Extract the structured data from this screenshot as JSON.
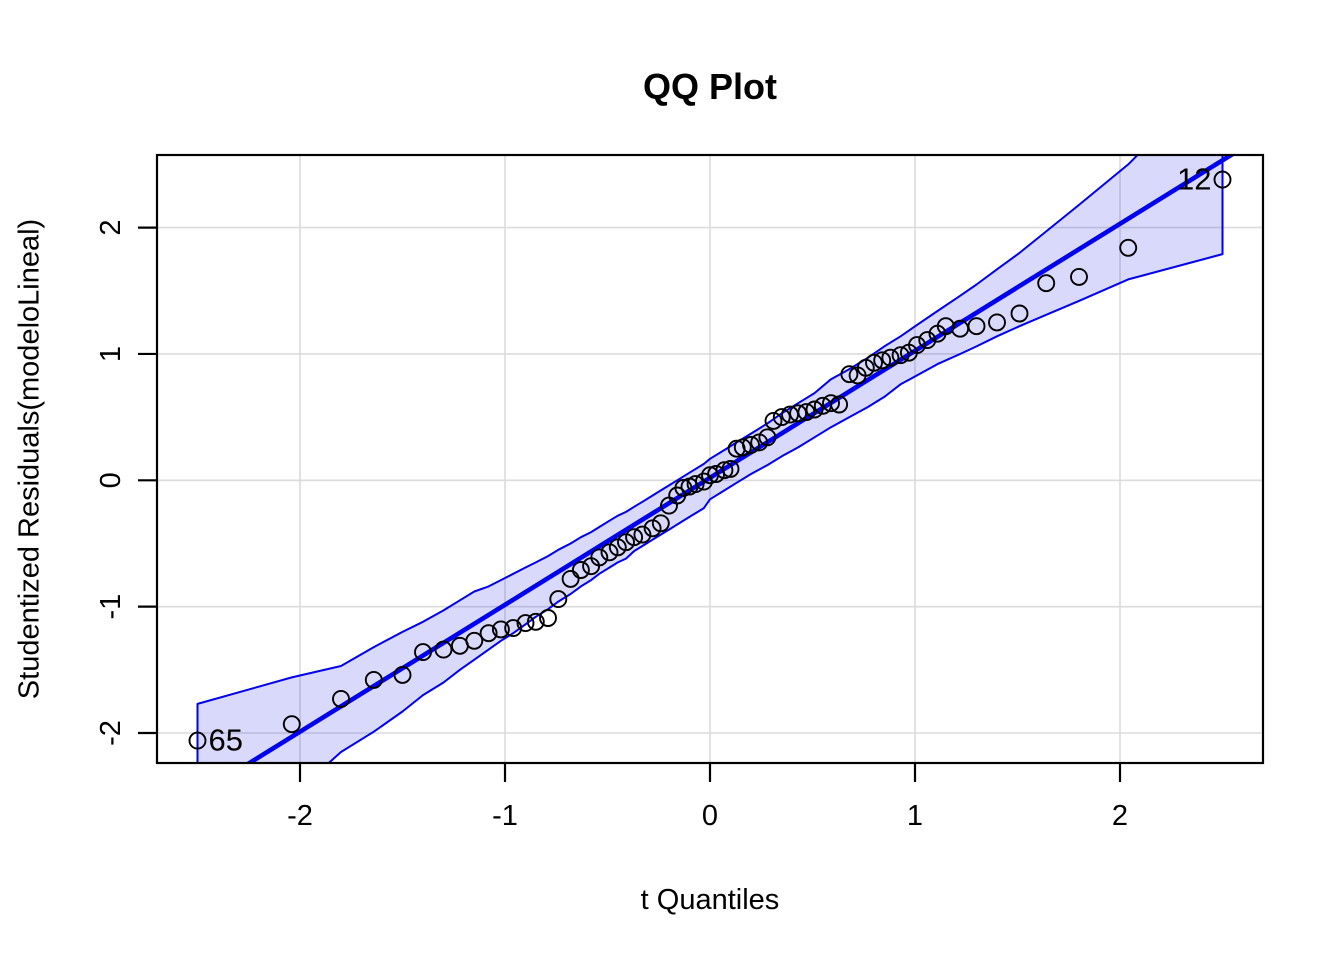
{
  "chart_data": {
    "type": "scatter",
    "title": "QQ Plot",
    "xlabel": "t Quantiles",
    "ylabel": "Studentized Residuals(modeloLineal)",
    "xlim": [
      -2.7,
      2.7
    ],
    "ylim": [
      -2.24,
      2.57
    ],
    "x_ticks": [
      "-2",
      "-1",
      "0",
      "1",
      "2"
    ],
    "x_tick_values": [
      -2,
      -1,
      0,
      1,
      2
    ],
    "y_ticks": [
      "-2",
      "-1",
      "0",
      "1",
      "2"
    ],
    "y_tick_values": [
      -2,
      -1,
      0,
      1,
      2
    ],
    "grid": true,
    "legend": null,
    "reference_line": {
      "intercept": 0.02,
      "slope": 1.005
    },
    "envelope": [
      [
        -2.5,
        -3.23,
        -1.77
      ],
      [
        -2.04,
        -2.5,
        -1.56
      ],
      [
        -1.8,
        -2.15,
        -1.47
      ],
      [
        -1.64,
        -1.99,
        -1.32
      ],
      [
        -1.5,
        -1.83,
        -1.2
      ],
      [
        -1.4,
        -1.7,
        -1.12
      ],
      [
        -1.3,
        -1.6,
        -1.03
      ],
      [
        -1.22,
        -1.5,
        -0.95
      ],
      [
        -1.15,
        -1.42,
        -0.88
      ],
      [
        -1.08,
        -1.34,
        -0.84
      ],
      [
        -1.02,
        -1.27,
        -0.79
      ],
      [
        -0.96,
        -1.21,
        -0.74
      ],
      [
        -0.9,
        -1.14,
        -0.69
      ],
      [
        -0.85,
        -1.08,
        -0.65
      ],
      [
        -0.79,
        -1.02,
        -0.6
      ],
      [
        -0.74,
        -0.96,
        -0.55
      ],
      [
        -0.68,
        -0.9,
        -0.5
      ],
      [
        -0.63,
        -0.84,
        -0.45
      ],
      [
        -0.58,
        -0.79,
        -0.41
      ],
      [
        -0.54,
        -0.74,
        -0.37
      ],
      [
        -0.49,
        -0.69,
        -0.32
      ],
      [
        -0.45,
        -0.65,
        -0.28
      ],
      [
        -0.41,
        -0.62,
        -0.25
      ],
      [
        -0.37,
        -0.56,
        -0.21
      ],
      [
        -0.33,
        -0.52,
        -0.17
      ],
      [
        -0.28,
        -0.47,
        -0.12
      ],
      [
        -0.24,
        -0.43,
        -0.08
      ],
      [
        -0.2,
        -0.39,
        -0.04
      ],
      [
        -0.16,
        -0.35,
        0.0
      ],
      [
        -0.1,
        -0.29,
        0.06
      ],
      [
        -0.03,
        -0.22,
        0.13
      ],
      [
        0.0,
        -0.15,
        0.17
      ],
      [
        0.07,
        -0.08,
        0.24
      ],
      [
        0.13,
        -0.02,
        0.3
      ],
      [
        0.2,
        0.05,
        0.37
      ],
      [
        0.28,
        0.12,
        0.45
      ],
      [
        0.35,
        0.19,
        0.53
      ],
      [
        0.43,
        0.26,
        0.61
      ],
      [
        0.51,
        0.34,
        0.69
      ],
      [
        0.59,
        0.42,
        0.8
      ],
      [
        0.68,
        0.5,
        0.88
      ],
      [
        0.77,
        0.58,
        0.97
      ],
      [
        0.85,
        0.66,
        1.06
      ],
      [
        0.93,
        0.76,
        1.14
      ],
      [
        1.01,
        0.83,
        1.23
      ],
      [
        1.11,
        0.92,
        1.34
      ],
      [
        1.22,
        1.0,
        1.46
      ],
      [
        1.3,
        1.06,
        1.55
      ],
      [
        1.4,
        1.14,
        1.67
      ],
      [
        1.51,
        1.22,
        1.8
      ],
      [
        1.64,
        1.31,
        1.97
      ],
      [
        1.8,
        1.42,
        2.18
      ],
      [
        2.04,
        1.59,
        2.5
      ],
      [
        2.5,
        1.79,
        3.25
      ]
    ],
    "points": [
      [
        -2.5,
        -2.06
      ],
      [
        -2.04,
        -1.93
      ],
      [
        -1.8,
        -1.73
      ],
      [
        -1.64,
        -1.58
      ],
      [
        -1.5,
        -1.54
      ],
      [
        -1.4,
        -1.36
      ],
      [
        -1.3,
        -1.34
      ],
      [
        -1.22,
        -1.31
      ],
      [
        -1.15,
        -1.27
      ],
      [
        -1.08,
        -1.21
      ],
      [
        -1.02,
        -1.18
      ],
      [
        -0.96,
        -1.17
      ],
      [
        -0.9,
        -1.13
      ],
      [
        -0.85,
        -1.12
      ],
      [
        -0.79,
        -1.09
      ],
      [
        -0.74,
        -0.94
      ],
      [
        -0.68,
        -0.78
      ],
      [
        -0.63,
        -0.71
      ],
      [
        -0.58,
        -0.68
      ],
      [
        -0.54,
        -0.61
      ],
      [
        -0.49,
        -0.57
      ],
      [
        -0.45,
        -0.53
      ],
      [
        -0.41,
        -0.49
      ],
      [
        -0.37,
        -0.45
      ],
      [
        -0.33,
        -0.43
      ],
      [
        -0.28,
        -0.38
      ],
      [
        -0.24,
        -0.34
      ],
      [
        -0.2,
        -0.2
      ],
      [
        -0.16,
        -0.12
      ],
      [
        -0.13,
        -0.06
      ],
      [
        -0.1,
        -0.05
      ],
      [
        -0.07,
        -0.03
      ],
      [
        -0.03,
        -0.01
      ],
      [
        0.0,
        0.04
      ],
      [
        0.03,
        0.05
      ],
      [
        0.07,
        0.08
      ],
      [
        0.1,
        0.09
      ],
      [
        0.13,
        0.25
      ],
      [
        0.16,
        0.26
      ],
      [
        0.2,
        0.28
      ],
      [
        0.24,
        0.3
      ],
      [
        0.28,
        0.34
      ],
      [
        0.31,
        0.47
      ],
      [
        0.35,
        0.5
      ],
      [
        0.39,
        0.52
      ],
      [
        0.43,
        0.53
      ],
      [
        0.47,
        0.54
      ],
      [
        0.51,
        0.56
      ],
      [
        0.55,
        0.59
      ],
      [
        0.59,
        0.61
      ],
      [
        0.63,
        0.6
      ],
      [
        0.68,
        0.84
      ],
      [
        0.72,
        0.83
      ],
      [
        0.76,
        0.89
      ],
      [
        0.8,
        0.93
      ],
      [
        0.84,
        0.95
      ],
      [
        0.88,
        0.97
      ],
      [
        0.93,
        0.99
      ],
      [
        0.97,
        1.01
      ],
      [
        1.01,
        1.07
      ],
      [
        1.06,
        1.11
      ],
      [
        1.11,
        1.16
      ],
      [
        1.15,
        1.22
      ],
      [
        1.22,
        1.2
      ],
      [
        1.3,
        1.22
      ],
      [
        1.4,
        1.25
      ],
      [
        1.51,
        1.32
      ],
      [
        1.64,
        1.56
      ],
      [
        1.8,
        1.61
      ],
      [
        2.04,
        1.84
      ],
      [
        2.5,
        2.38
      ]
    ],
    "labeled_points": [
      {
        "label": "65",
        "x": -2.5,
        "y": -2.06,
        "side": "right"
      },
      {
        "label": "12",
        "x": 2.5,
        "y": 2.38,
        "side": "left"
      }
    ],
    "colors": {
      "line": "#0000EE",
      "envelope_stroke": "#0000EE",
      "envelope_fill_rgba": "rgba(0,0,238,0.15)",
      "grid": "#DBDBDB",
      "box": "#000000",
      "points": "#000000",
      "text": "#000000"
    }
  }
}
